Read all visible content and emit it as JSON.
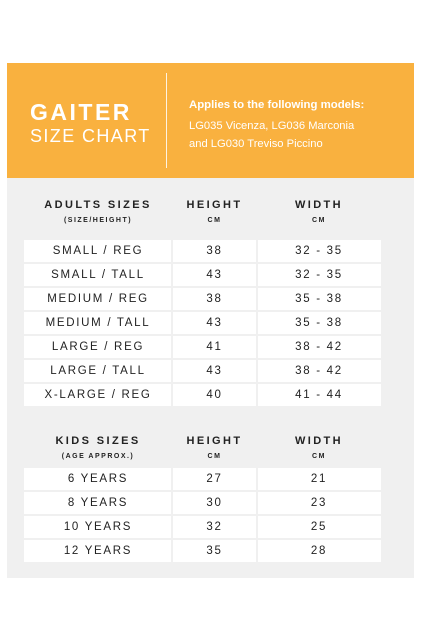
{
  "header": {
    "title_line1": "GAITER",
    "title_line2": "SIZE CHART",
    "applies_label": "Applies to the following models:",
    "models_line1": "LG035 Vicenza, LG036 Marconia",
    "models_line2": "and LG030 Treviso Piccino"
  },
  "colors": {
    "accent": "#f9b13f",
    "panel": "#f0f0f0",
    "row": "#ffffff",
    "text": "#222222"
  },
  "adults": {
    "size_header": "ADULTS SIZES",
    "size_sub": "(SIZE/HEIGHT)",
    "height_header": "HEIGHT",
    "height_unit": "CM",
    "width_header": "WIDTH",
    "width_unit": "CM",
    "rows": [
      {
        "size": "SMALL / REG",
        "height": "38",
        "width": "32 - 35"
      },
      {
        "size": "SMALL / TALL",
        "height": "43",
        "width": "32 - 35"
      },
      {
        "size": "MEDIUM / REG",
        "height": "38",
        "width": "35 - 38"
      },
      {
        "size": "MEDIUM / TALL",
        "height": "43",
        "width": "35 - 38"
      },
      {
        "size": "LARGE / REG",
        "height": "41",
        "width": "38 - 42"
      },
      {
        "size": "LARGE / TALL",
        "height": "43",
        "width": "38 - 42"
      },
      {
        "size": "X-LARGE / REG",
        "height": "40",
        "width": "41 - 44"
      }
    ]
  },
  "kids": {
    "size_header": "KIDS SIZES",
    "size_sub": "(AGE APPROX.)",
    "height_header": "HEIGHT",
    "height_unit": "CM",
    "width_header": "WIDTH",
    "width_unit": "CM",
    "rows": [
      {
        "size": "6 YEARS",
        "height": "27",
        "width": "21"
      },
      {
        "size": "8 YEARS",
        "height": "30",
        "width": "23"
      },
      {
        "size": "10 YEARS",
        "height": "32",
        "width": "25"
      },
      {
        "size": "12 YEARS",
        "height": "35",
        "width": "28"
      }
    ]
  }
}
